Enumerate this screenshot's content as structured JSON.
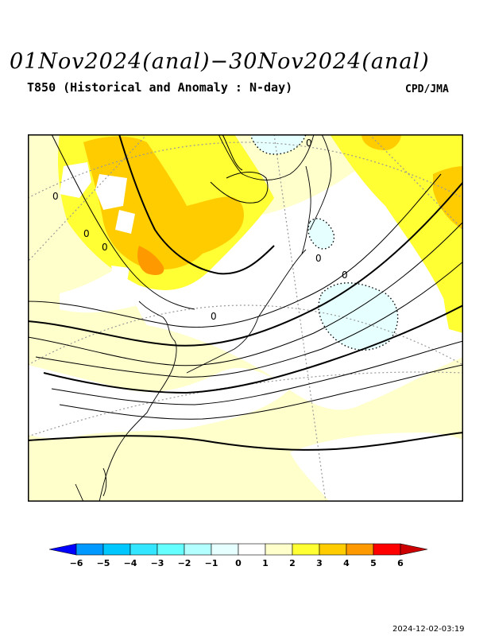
{
  "header": {
    "title": "01Nov2024(anal)−30Nov2024(anal)",
    "subtitle": "T850 (Historical and Anomaly : N-day)",
    "agency": "CPD/JMA"
  },
  "map": {
    "contour_zero_label": "0",
    "legend": {
      "colors": [
        "#0000ff",
        "#0099ff",
        "#00c8ff",
        "#33e6ff",
        "#66ffff",
        "#b3ffff",
        "#e6ffff",
        "#ffffff",
        "#ffffcc",
        "#ffff33",
        "#ffcc00",
        "#ff9900",
        "#ff0000",
        "#cc0000"
      ],
      "labels": [
        "−6",
        "−5",
        "−4",
        "−3",
        "−2",
        "−1",
        "0",
        "1",
        "2",
        "3",
        "4",
        "5",
        "6"
      ]
    }
  },
  "footer": {
    "timestamp": "2024-12-02-03:19"
  }
}
